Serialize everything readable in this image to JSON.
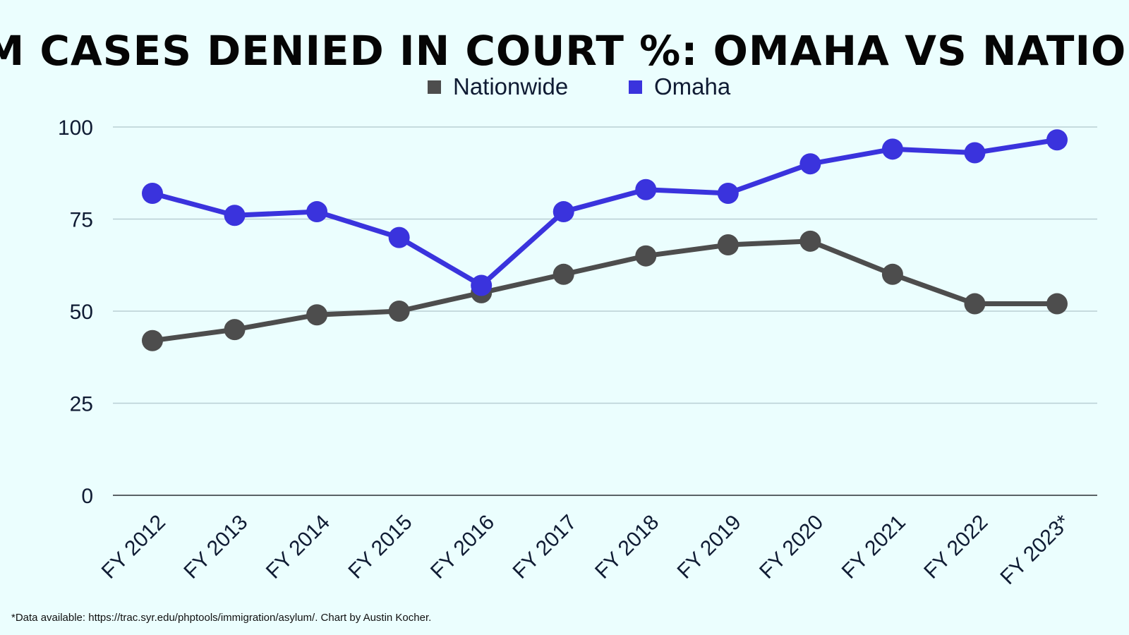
{
  "chart_data": {
    "type": "line",
    "title": "ASYLUM CASES DENIED IN COURT %: OMAHA VS NATIONWIDE",
    "xlabel": "",
    "ylabel": "",
    "categories": [
      "FY 2012",
      "FY 2013",
      "FY 2014",
      "FY 2015",
      "FY 2016",
      "FY 2017",
      "FY 2018",
      "FY 2019",
      "FY 2020",
      "FY 2021",
      "FY 2022",
      "FY 2023*"
    ],
    "series": [
      {
        "name": "Nationwide",
        "color": "#4d4d4d",
        "values": [
          42,
          45,
          49,
          50,
          55,
          60,
          65,
          68,
          69,
          60,
          52,
          52
        ]
      },
      {
        "name": "Omaha",
        "color": "#3a33dd",
        "values": [
          82,
          76,
          77,
          70,
          57,
          77,
          83,
          82,
          90,
          94,
          93,
          96.5
        ]
      }
    ],
    "ylim": [
      0,
      100
    ],
    "yticks": [
      0,
      25,
      50,
      75,
      100
    ],
    "grid": true,
    "legend_position": "top-center"
  },
  "footnote": "*Data available: https://trac.syr.edu/phptools/immigration/asylum/. Chart by Austin Kocher."
}
